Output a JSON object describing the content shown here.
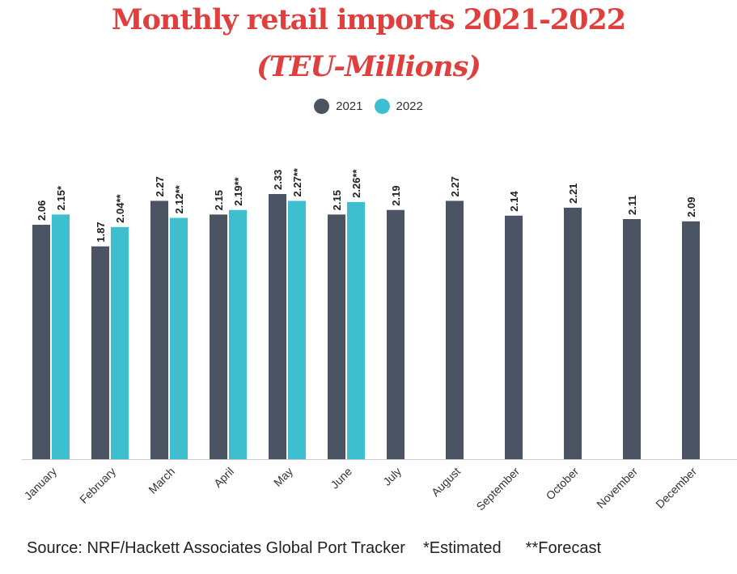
{
  "title_line1": "Monthly retail imports 2021-2022",
  "title_line2": "(TEU-Millions)",
  "footer": {
    "source": "Source: NRF/Hackett Associates Global Port Tracker",
    "estimated": "*Estimated",
    "forecast": "**Forecast"
  },
  "colors": {
    "series_2021": "#4a5463",
    "series_2022": "#3dbfcf",
    "title": "#e0403d"
  },
  "chart_data": {
    "type": "bar",
    "title": "Monthly retail imports 2021-2022 (TEU-Millions)",
    "legend_position": "top-center",
    "grid": false,
    "ylim": [
      0,
      2.33
    ],
    "categories": [
      "January",
      "February",
      "March",
      "April",
      "May",
      "June",
      "July",
      "August",
      "September",
      "October",
      "November",
      "December"
    ],
    "series": [
      {
        "name": "2021",
        "values": [
          2.06,
          1.87,
          2.27,
          2.15,
          2.33,
          2.15,
          2.19,
          2.27,
          2.14,
          2.21,
          2.11,
          2.09
        ],
        "labels": [
          "2.06",
          "1.87",
          "2.27",
          "2.15",
          "2.33",
          "2.15",
          "2.19",
          "2.27",
          "2.14",
          "2.21",
          "2.11",
          "2.09"
        ]
      },
      {
        "name": "2022",
        "values": [
          2.15,
          2.04,
          2.12,
          2.19,
          2.27,
          2.26,
          null,
          null,
          null,
          null,
          null,
          null
        ],
        "labels": [
          "2.15*",
          "2.04**",
          "2.12**",
          "2.19**",
          "2.27**",
          "2.26**",
          null,
          null,
          null,
          null,
          null,
          null
        ]
      }
    ]
  }
}
